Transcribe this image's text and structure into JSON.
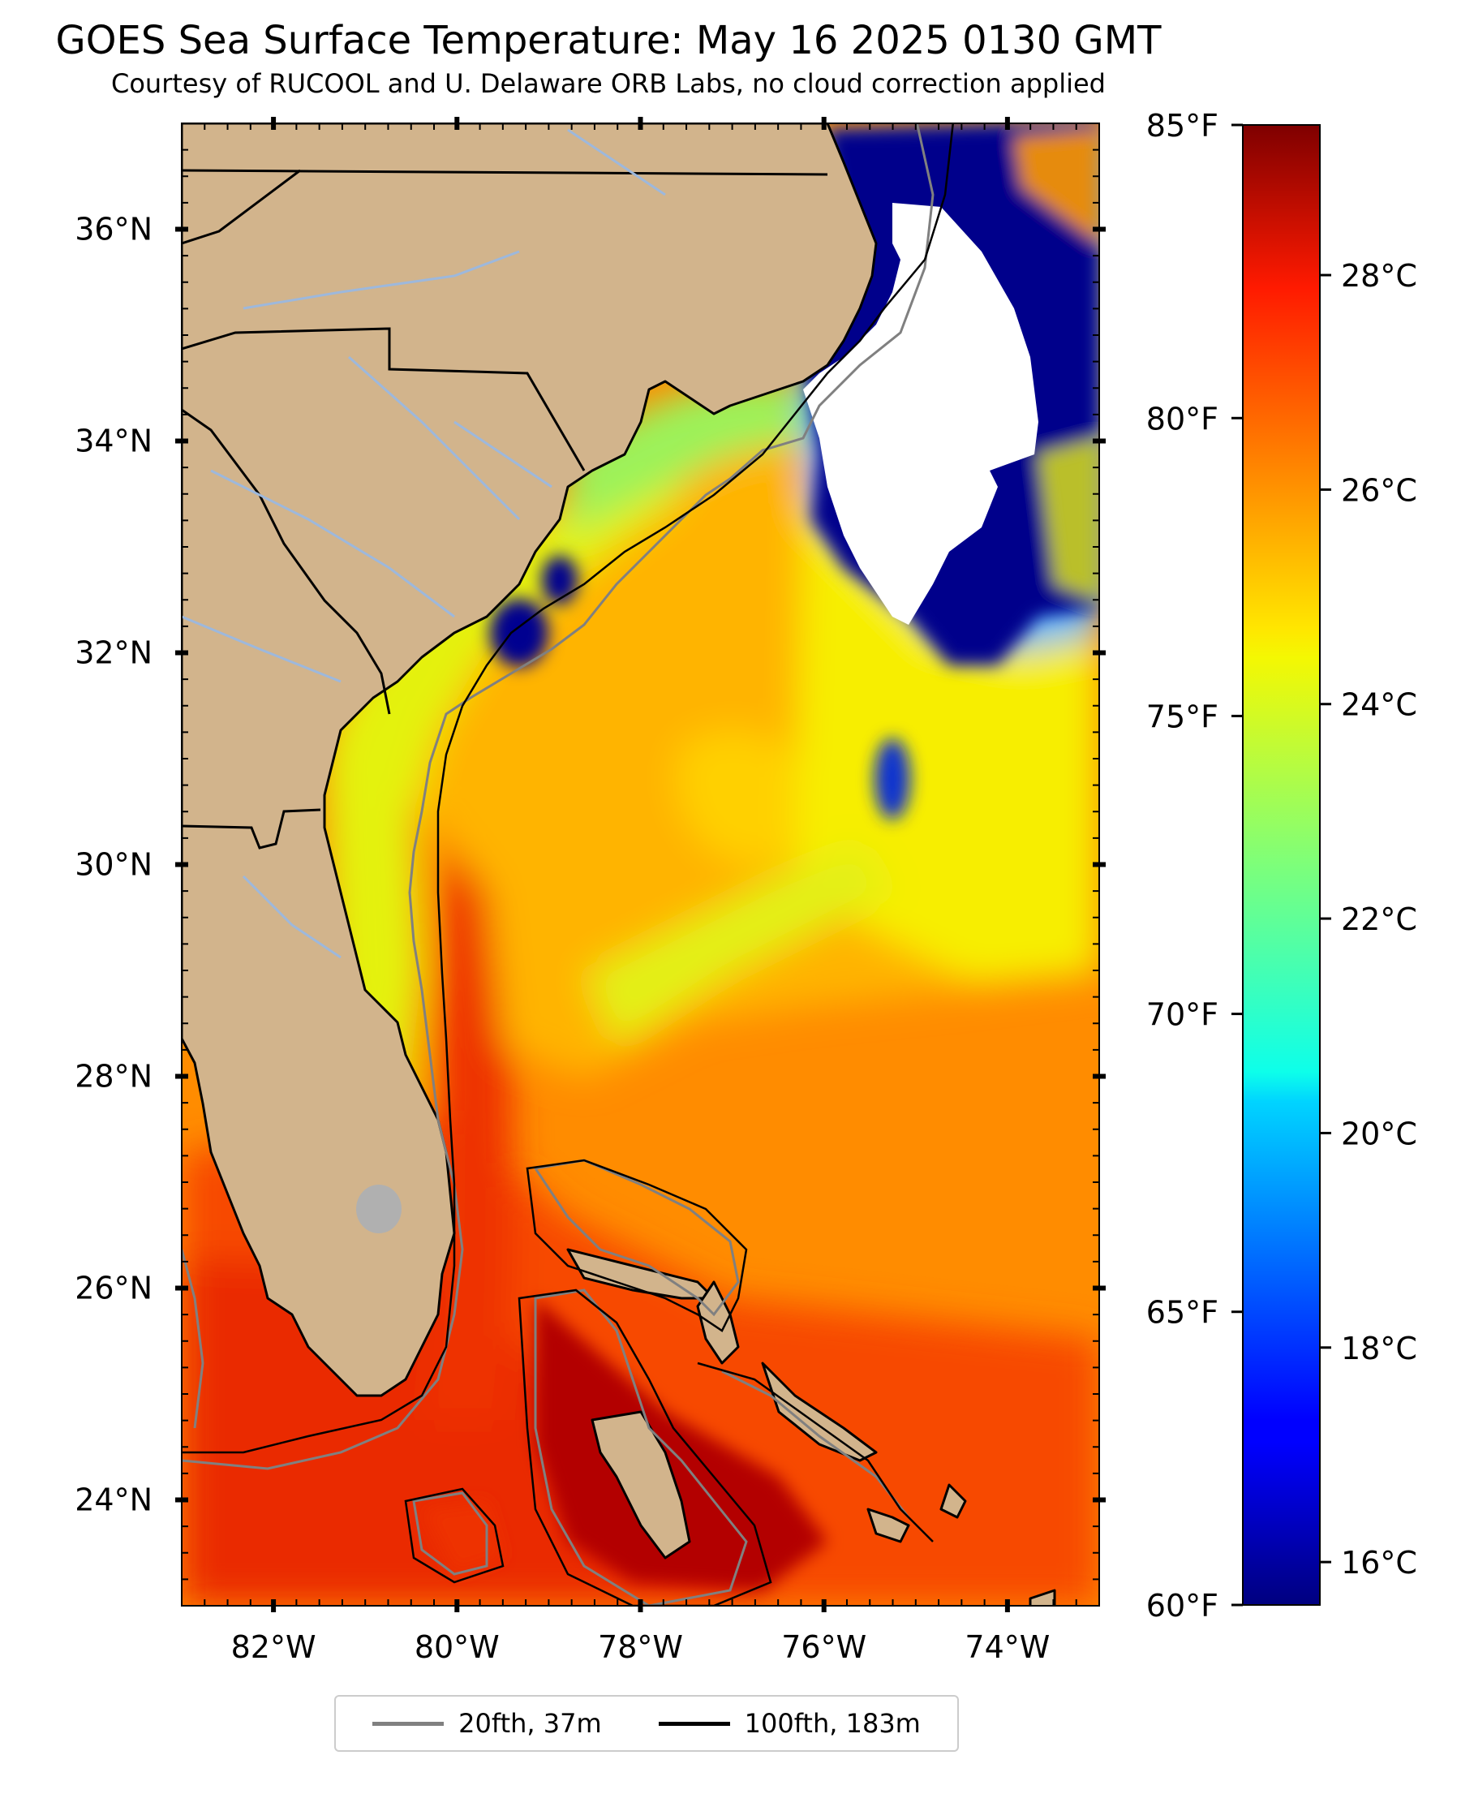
{
  "title": "GOES Sea Surface Temperature: May 16 2025 0130 GMT",
  "subtitle": "Courtesy of RUCOOL and U. Delaware ORB Labs, no cloud correction applied",
  "map": {
    "extent": {
      "lon": [
        -83,
        -73
      ],
      "lat": [
        23,
        37
      ]
    },
    "lon_ticks": [
      {
        "value": -82,
        "label": "82°W"
      },
      {
        "value": -80,
        "label": "80°W"
      },
      {
        "value": -78,
        "label": "78°W"
      },
      {
        "value": -76,
        "label": "76°W"
      },
      {
        "value": -74,
        "label": "74°W"
      }
    ],
    "lat_ticks": [
      {
        "value": 24,
        "label": "24°N"
      },
      {
        "value": 26,
        "label": "26°N"
      },
      {
        "value": 28,
        "label": "28°N"
      },
      {
        "value": 30,
        "label": "30°N"
      },
      {
        "value": 32,
        "label": "32°N"
      },
      {
        "value": 34,
        "label": "34°N"
      },
      {
        "value": 36,
        "label": "36°N"
      }
    ],
    "colors": {
      "land": "#d2b48c",
      "cloud_mask": "#ffffff",
      "cold_water": "#00008b",
      "isobath_20": "#808080",
      "isobath_100": "#000000",
      "rivers": "#9db8dc",
      "lakes": "#b0b0b0"
    }
  },
  "colorbar": {
    "colormap": "jet",
    "range_c": [
      15.6,
      29.4
    ],
    "celsius_ticks": [
      {
        "value": 16,
        "label": "16°C"
      },
      {
        "value": 18,
        "label": "18°C"
      },
      {
        "value": 20,
        "label": "20°C"
      },
      {
        "value": 22,
        "label": "22°C"
      },
      {
        "value": 24,
        "label": "24°C"
      },
      {
        "value": 26,
        "label": "26°C"
      },
      {
        "value": 28,
        "label": "28°C"
      }
    ],
    "fahrenheit_ticks": [
      {
        "value": 60,
        "label": "60°F"
      },
      {
        "value": 65,
        "label": "65°F"
      },
      {
        "value": 70,
        "label": "70°F"
      },
      {
        "value": 75,
        "label": "75°F"
      },
      {
        "value": 80,
        "label": "80°F"
      },
      {
        "value": 85,
        "label": "85°F"
      }
    ]
  },
  "legend": {
    "entries": [
      {
        "label": "20fth, 37m",
        "color": "#808080"
      },
      {
        "label": "100fth, 183m",
        "color": "#000000"
      }
    ]
  }
}
